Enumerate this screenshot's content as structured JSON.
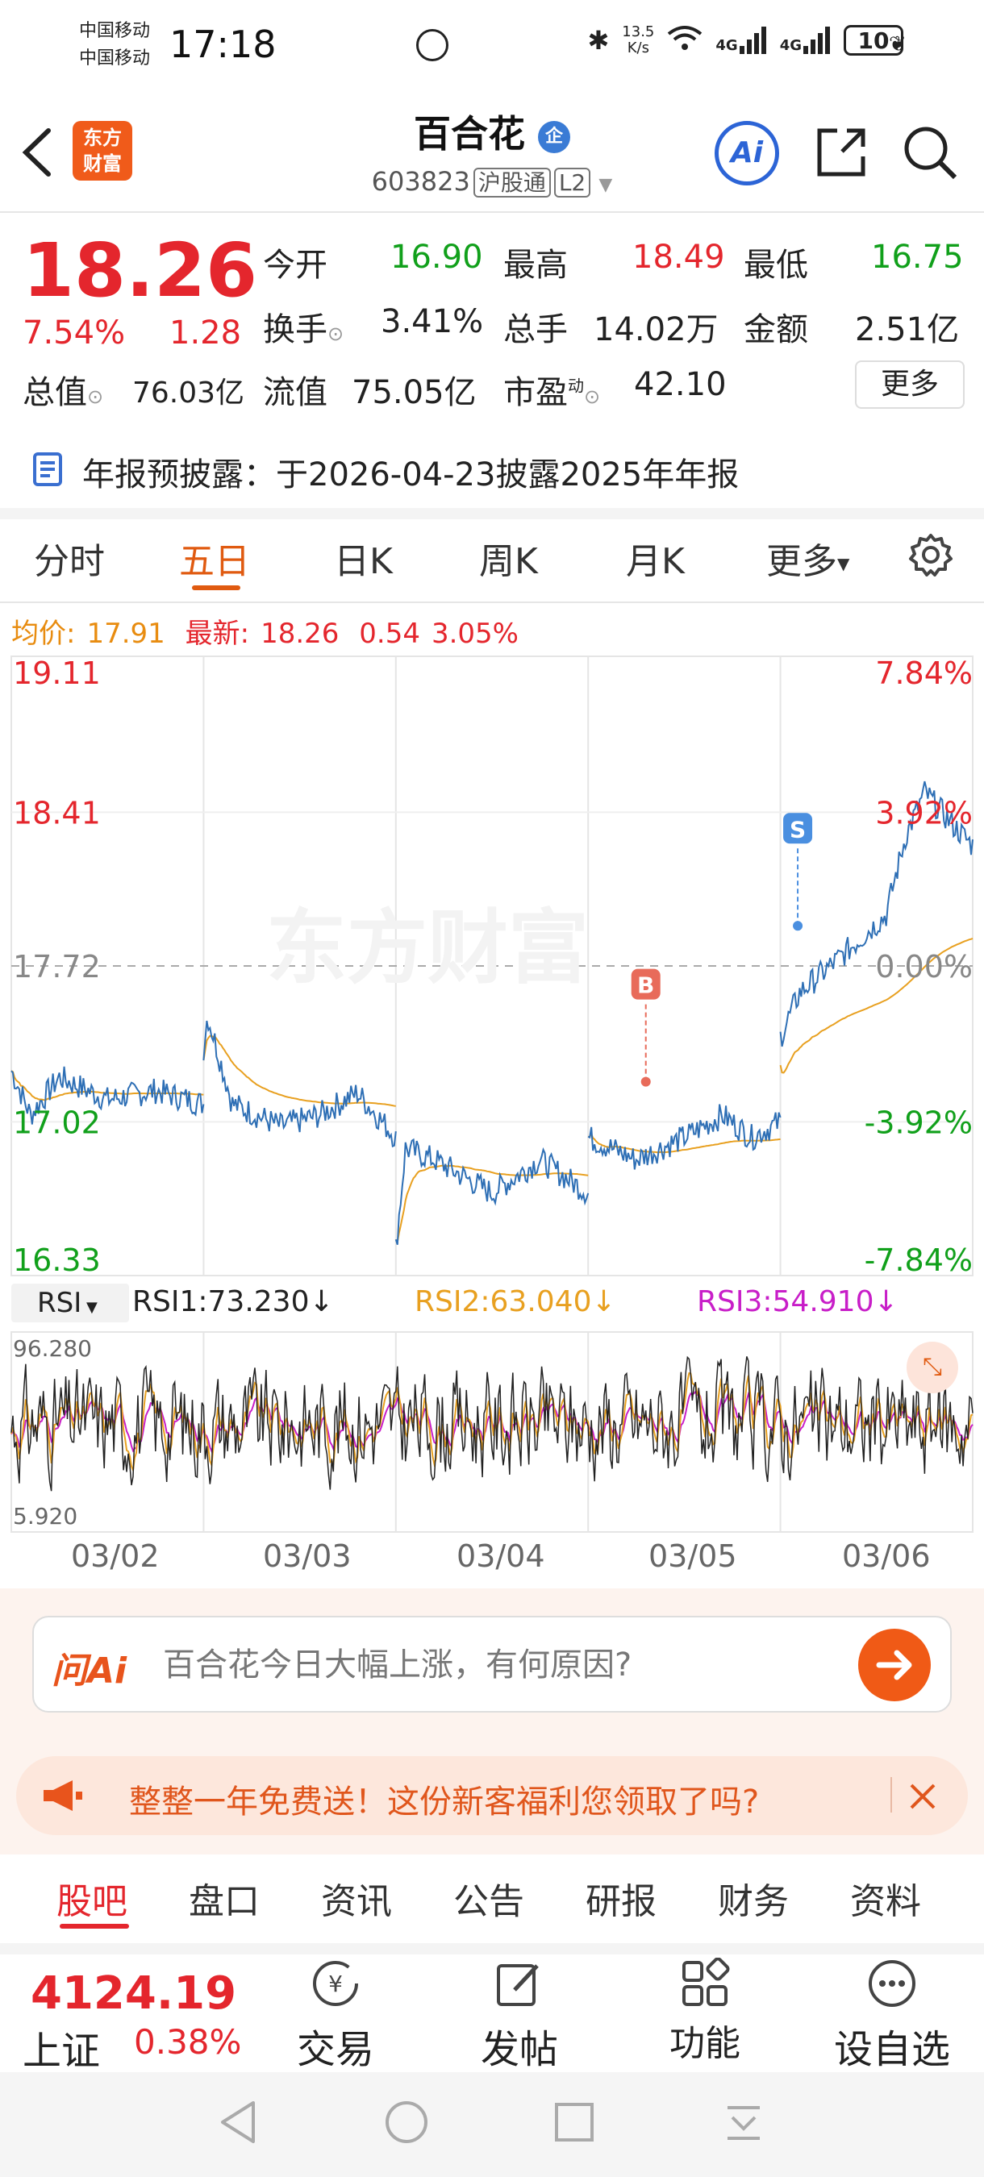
{
  "status_bar": {
    "carrier1": "中国移动",
    "carrier2": "中国移动",
    "time": "17:18",
    "net_speed_top": "13.5",
    "net_speed_bottom": "K/s",
    "signal_label1": "4G",
    "signal_label2": "4G",
    "battery": "10"
  },
  "header": {
    "title": "百合花",
    "code": "603823",
    "market_tag": "沪股通",
    "level_tag": "L2",
    "logo_line1": "东方",
    "logo_line2": "财富",
    "badge": "企",
    "ai_label": "Ai"
  },
  "quote": {
    "price": "18.26",
    "change_pct": "7.54%",
    "change_amt": "1.28",
    "open_label": "今开",
    "open": "16.90",
    "high_label": "最高",
    "high": "18.49",
    "low_label": "最低",
    "low": "16.75",
    "turnover_label": "换手",
    "turnover": "3.41%",
    "volume_label": "总手",
    "volume": "14.02万",
    "amount_label": "金额",
    "amount": "2.51亿",
    "mcap_label": "总值",
    "mcap": "76.03亿",
    "float_label": "流值",
    "float": "75.05亿",
    "pe_label": "市盈",
    "pe_sup": "动",
    "pe": "42.10",
    "more": "更多"
  },
  "notice": "年报预披露：于2026-04-23披露2025年年报",
  "tabs": [
    "分时",
    "五日",
    "日K",
    "周K",
    "月K",
    "更多",
    "设置"
  ],
  "legend": {
    "avg_label": "均价:",
    "avg": "17.91",
    "latest_label": "最新:",
    "latest": "18.26",
    "chg": "0.54",
    "pct": "3.05%"
  },
  "watermark": "东方财富",
  "chart_data": {
    "type": "line",
    "y_left": [
      "19.11",
      "18.41",
      "17.72",
      "17.02",
      "16.33"
    ],
    "y_right": [
      "7.84%",
      "3.92%",
      "0.00%",
      "-3.92%",
      "-7.84%"
    ],
    "ylim": [
      16.33,
      19.11
    ],
    "base": 17.72,
    "dates": [
      "03/02",
      "03/03",
      "03/04",
      "03/05",
      "03/06"
    ],
    "markers": [
      {
        "label": "B",
        "price": 17.2
      },
      {
        "label": "S",
        "price": 17.9
      }
    ],
    "series": [
      {
        "name": "最新",
        "color": "#2e6fb5"
      },
      {
        "name": "均价",
        "color": "#e8a020"
      }
    ]
  },
  "rsi": {
    "selector": "RSI",
    "rsi1": "RSI1:73.230↓",
    "rsi2": "RSI2:63.040↓",
    "rsi3": "RSI3:54.910↓",
    "max": "96.280",
    "min": "5.920",
    "colors": [
      "#222222",
      "#e8a020",
      "#c81ec8"
    ]
  },
  "ask": {
    "brand": "问Ai",
    "text": "百合花今日大幅上涨，有何原因?"
  },
  "banner": {
    "text": "整整一年免费送！这份新客福利您领取了吗?"
  },
  "bottom_tabs": [
    "股吧",
    "盘口",
    "资讯",
    "公告",
    "研报",
    "财务",
    "资料"
  ],
  "index": {
    "value": "4124.19",
    "name": "上证",
    "pct": "0.38%"
  },
  "actions": [
    "交易",
    "发帖",
    "功能",
    "设自选"
  ],
  "colors": {
    "red": "#e4262d",
    "green": "#11a01b",
    "accent": "#e05a10",
    "price_line": "#2e6fb5",
    "avg_line": "#e8a020"
  }
}
